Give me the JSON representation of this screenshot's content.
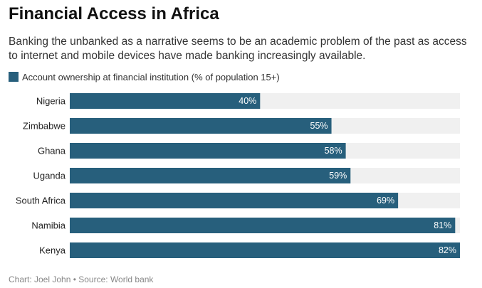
{
  "chart_data": {
    "type": "bar",
    "orientation": "horizontal",
    "title": "Financial Access in Africa",
    "subtitle": "Banking the unbanked as a narrative seems to be an academic problem of the past as access to internet and mobile devices have made banking increasingly available.",
    "categories": [
      "Nigeria",
      "Zimbabwe",
      "Ghana",
      "Uganda",
      "South Africa",
      "Namibia",
      "Kenya"
    ],
    "series": [
      {
        "name": "Account ownership at financial institution (% of population 15+)",
        "values": [
          40,
          55,
          58,
          59,
          69,
          81,
          82
        ],
        "color": "#275f7c"
      }
    ],
    "value_suffix": "%",
    "xlim": [
      0,
      82
    ],
    "background_track_color": "#f0f0f0",
    "label_color": "#ffffff",
    "legend": "top-left",
    "grid": false
  },
  "footer": {
    "credit": "Chart: Joel John • Source: World bank"
  }
}
